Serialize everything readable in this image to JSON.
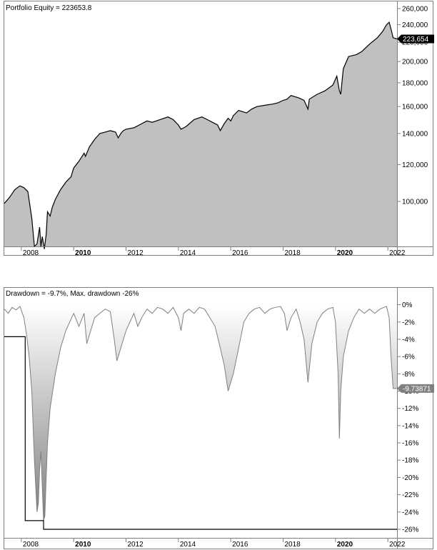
{
  "chart_data": [
    {
      "type": "area",
      "title": "Portfolio Equity = 223653.8",
      "series": [
        {
          "name": "Portfolio Equity",
          "x": [
            2007.35,
            2007.55,
            2007.75,
            2007.95,
            2008.1,
            2008.25,
            2008.4,
            2008.5,
            2008.6,
            2008.7,
            2008.75,
            2008.8,
            2008.88,
            2008.95,
            2009.0,
            2009.1,
            2009.18,
            2009.3,
            2009.5,
            2009.7,
            2009.9,
            2010.0,
            2010.2,
            2010.4,
            2010.45,
            2010.6,
            2010.8,
            2011.0,
            2011.2,
            2011.4,
            2011.6,
            2011.7,
            2011.8,
            2011.9,
            2012.0,
            2012.3,
            2012.6,
            2012.8,
            2013.0,
            2013.3,
            2013.6,
            2013.8,
            2014.0,
            2014.1,
            2014.3,
            2014.6,
            2014.9,
            2015.1,
            2015.3,
            2015.5,
            2015.6,
            2015.75,
            2015.9,
            2016.0,
            2016.1,
            2016.3,
            2016.6,
            2016.8,
            2017.0,
            2017.3,
            2017.6,
            2017.8,
            2018.0,
            2018.15,
            2018.3,
            2018.6,
            2018.8,
            2018.95,
            2019.0,
            2019.3,
            2019.6,
            2019.9,
            2020.05,
            2020.15,
            2020.2,
            2020.3,
            2020.5,
            2020.8,
            2021.0,
            2021.3,
            2021.6,
            2021.8,
            2021.95,
            2022.05,
            2022.12,
            2022.2,
            2022.35
          ],
          "y": [
            99000,
            102000,
            106000,
            108000,
            107000,
            105000,
            92000,
            80000,
            81000,
            88000,
            80000,
            84000,
            79000,
            85000,
            95000,
            93000,
            97000,
            101000,
            106000,
            110000,
            113000,
            118000,
            122000,
            127000,
            125000,
            131000,
            136000,
            140000,
            141000,
            142000,
            141000,
            137000,
            140000,
            142000,
            143000,
            144000,
            147000,
            149000,
            148000,
            150000,
            152000,
            150000,
            146000,
            143000,
            145000,
            150000,
            152000,
            150000,
            148000,
            146000,
            142000,
            147000,
            151000,
            149000,
            153000,
            157000,
            155000,
            158000,
            160000,
            161000,
            162000,
            163000,
            165000,
            166000,
            169000,
            167000,
            165000,
            158000,
            166000,
            170000,
            173000,
            178000,
            186000,
            173000,
            170000,
            193000,
            205000,
            207000,
            210000,
            218000,
            225000,
            232000,
            240000,
            243000,
            235000,
            225000,
            223654
          ]
        }
      ],
      "ylim": [
        80000,
        260000
      ],
      "yscale": "log",
      "yticks": [
        100000,
        120000,
        140000,
        160000,
        180000,
        200000,
        220000,
        240000,
        260000
      ],
      "ytick_labels": [
        "100,000",
        "120,000",
        "140,000",
        "160,000",
        "180,000",
        "200,000",
        "220,000",
        "240,000",
        "260,000"
      ],
      "xlim": [
        2007.35,
        2022.35
      ],
      "xticks": [
        "2008",
        "2010",
        "2012",
        "2014",
        "2016",
        "2018",
        "2020",
        "2022"
      ],
      "last_value_label": "223,654",
      "grid": false,
      "colors": {
        "line": "#000000",
        "fill": "#c0c0c0"
      }
    },
    {
      "type": "area",
      "title": "Drawdown = -9.7%, Max. drawdown -26%",
      "series": [
        {
          "name": "Drawdown",
          "x": [
            2007.35,
            2007.5,
            2007.65,
            2007.8,
            2007.95,
            2008.1,
            2008.2,
            2008.3,
            2008.4,
            2008.45,
            2008.5,
            2008.55,
            2008.6,
            2008.65,
            2008.7,
            2008.75,
            2008.8,
            2008.85,
            2008.9,
            2008.95,
            2009.0,
            2009.1,
            2009.2,
            2009.3,
            2009.5,
            2009.7,
            2009.85,
            2010.0,
            2010.2,
            2010.4,
            2010.5,
            2010.6,
            2010.8,
            2011.0,
            2011.2,
            2011.4,
            2011.55,
            2011.65,
            2011.8,
            2012.0,
            2012.3,
            2012.45,
            2012.6,
            2012.8,
            2013.0,
            2013.2,
            2013.4,
            2013.6,
            2013.8,
            2014.0,
            2014.1,
            2014.2,
            2014.4,
            2014.6,
            2014.8,
            2015.0,
            2015.2,
            2015.4,
            2015.6,
            2015.75,
            2015.9,
            2016.1,
            2016.3,
            2016.5,
            2016.7,
            2016.9,
            2017.1,
            2017.3,
            2017.5,
            2017.7,
            2017.9,
            2018.05,
            2018.15,
            2018.3,
            2018.5,
            2018.65,
            2018.8,
            2018.95,
            2019.1,
            2019.3,
            2019.5,
            2019.7,
            2019.9,
            2020.0,
            2020.1,
            2020.15,
            2020.2,
            2020.3,
            2020.5,
            2020.7,
            2020.9,
            2021.1,
            2021.3,
            2021.5,
            2021.7,
            2021.85,
            2021.95,
            2022.05,
            2022.12,
            2022.2,
            2022.35
          ],
          "y": [
            -0.5,
            -1.0,
            -0.3,
            -0.6,
            -0.2,
            -1.5,
            -3.5,
            -6.0,
            -10.0,
            -14.0,
            -18.0,
            -21.0,
            -24.0,
            -23.0,
            -19.0,
            -17.0,
            -21.0,
            -25.0,
            -24.5,
            -20.0,
            -16.0,
            -12.0,
            -10.0,
            -8.0,
            -5.0,
            -3.0,
            -2.0,
            -1.0,
            -2.5,
            -1.0,
            -4.5,
            -3.5,
            -1.5,
            -1.0,
            -0.5,
            -0.8,
            -4.0,
            -6.5,
            -5.0,
            -3.0,
            -1.0,
            -2.5,
            -1.5,
            -0.5,
            -1.0,
            -0.3,
            -0.5,
            -1.0,
            -0.3,
            -1.5,
            -3.0,
            -1.0,
            -0.5,
            -1.0,
            -0.3,
            -0.5,
            -1.5,
            -2.5,
            -5.0,
            -7.0,
            -10.0,
            -8.0,
            -5.0,
            -2.0,
            -1.0,
            -0.5,
            -0.3,
            -1.0,
            -0.5,
            -0.3,
            -0.2,
            -1.0,
            -3.0,
            -1.5,
            -0.5,
            -2.0,
            -4.0,
            -9.0,
            -4.5,
            -2.0,
            -1.0,
            -0.5,
            -0.3,
            -2.0,
            -8.0,
            -15.5,
            -10.0,
            -6.0,
            -3.0,
            -1.5,
            -0.5,
            -1.0,
            -0.5,
            -1.0,
            -0.5,
            -0.3,
            -0.2,
            -1.5,
            -6.0,
            -9.7,
            -9.7
          ]
        },
        {
          "name": "Max. drawdown",
          "x": [
            2007.35,
            2008.15,
            2008.15,
            2008.85,
            2008.85,
            2022.35
          ],
          "y": [
            -3.7,
            -3.7,
            -25.0,
            -25.0,
            -26.0,
            -26.0
          ]
        }
      ],
      "ylim": [
        -26.5,
        0.3
      ],
      "yticks": [
        0,
        -2,
        -4,
        -6,
        -8,
        -10,
        -12,
        -14,
        -16,
        -18,
        -20,
        -22,
        -24,
        -26
      ],
      "ytick_labels": [
        "0%",
        "-2%",
        "-4%",
        "-6%",
        "-8%",
        "-10%",
        "-12%",
        "-14%",
        "-16%",
        "-18%",
        "-20%",
        "-22%",
        "-24%",
        "-26%"
      ],
      "xlim": [
        2007.35,
        2022.35
      ],
      "xticks": [
        "2008",
        "2010",
        "2012",
        "2014",
        "2016",
        "2018",
        "2020",
        "2022"
      ],
      "last_value_label": "-9.73871",
      "grid": false,
      "colors": {
        "line": "#808080",
        "fill": "#d8d8d8",
        "max_line": "#000000"
      }
    }
  ]
}
